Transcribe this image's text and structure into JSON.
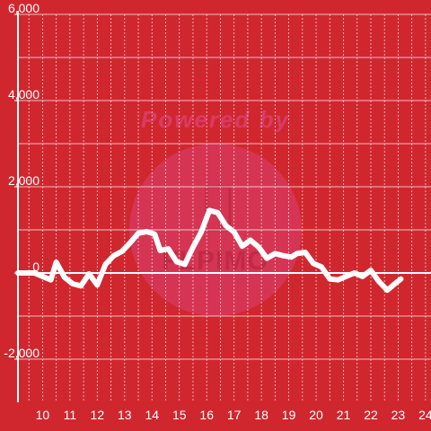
{
  "colors": {
    "background": "#d0272f",
    "line": "#ffffff",
    "grid": "#ffffff",
    "watermark_circle": "#d63658",
    "watermark_text": "#d93b63"
  },
  "watermark": {
    "top_text": "Powered by",
    "brand_text": "FLPIMO"
  },
  "chart_data": {
    "type": "line",
    "title": "",
    "xlabel": "",
    "ylabel": "",
    "xlim": [
      9.1,
      24.2
    ],
    "ylim": [
      -3000,
      6000
    ],
    "x_ticks": [
      10,
      11,
      12,
      13,
      14,
      15,
      16,
      17,
      18,
      19,
      20,
      21,
      22,
      23,
      24
    ],
    "y_ticks": [
      -2000,
      0,
      2000,
      4000,
      6000
    ],
    "y_tick_labels": [
      "-2,000",
      "0",
      "2,000",
      "4,000",
      "6,000"
    ],
    "grid": {
      "vertical": true,
      "horizontal": true
    },
    "legend": "none",
    "series": [
      {
        "x": [
          9.1,
          9.4,
          9.7,
          10.0,
          10.3,
          10.5,
          10.8,
          11.1,
          11.4,
          11.7,
          12.0,
          12.3,
          12.6,
          12.9,
          13.2,
          13.5,
          13.8,
          14.1,
          14.3,
          14.6,
          14.9,
          15.2,
          15.5,
          15.8,
          16.1,
          16.4,
          16.7,
          17.0,
          17.3,
          17.6,
          17.9,
          18.2,
          18.5,
          18.8,
          19.1,
          19.3,
          19.6,
          19.9,
          20.2,
          20.5,
          20.8,
          21.1,
          21.4,
          21.7,
          22.0,
          22.3,
          22.6,
          22.9,
          23.1
        ],
        "y": [
          0,
          0,
          0,
          -80,
          -160,
          250,
          -100,
          -250,
          -300,
          -20,
          -280,
          200,
          400,
          500,
          700,
          920,
          960,
          900,
          520,
          560,
          260,
          200,
          600,
          950,
          1450,
          1400,
          1100,
          950,
          620,
          760,
          600,
          340,
          450,
          400,
          370,
          450,
          480,
          220,
          140,
          -140,
          -160,
          -80,
          0,
          -80,
          60,
          -200,
          -400,
          -240,
          -140
        ]
      }
    ]
  }
}
